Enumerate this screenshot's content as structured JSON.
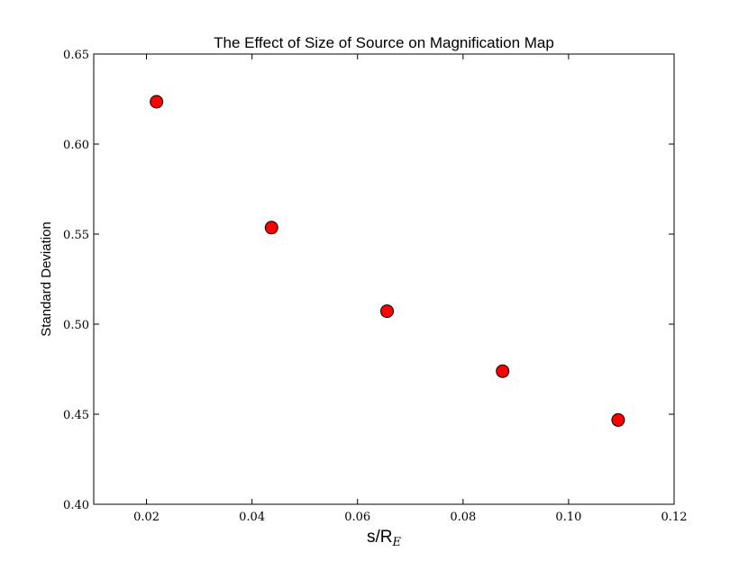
{
  "chart_data": {
    "type": "scatter",
    "title": "The Effect of Size of Source on Magnification Map",
    "xlabel": {
      "main": "s/R",
      "sub": "E"
    },
    "ylabel": "Standard Deviation",
    "xlim": [
      0.01,
      0.12
    ],
    "ylim": [
      0.4,
      0.65
    ],
    "xticks": [
      "0.02",
      "0.04",
      "0.06",
      "0.08",
      "0.10",
      "0.12"
    ],
    "yticks": [
      "0.40",
      "0.45",
      "0.50",
      "0.55",
      "0.60",
      "0.65"
    ],
    "grid": false,
    "marker_color": "#ff0000",
    "marker_edge_color": "#000000",
    "points": [
      {
        "x": 0.0219,
        "y": 0.6235
      },
      {
        "x": 0.0437,
        "y": 0.5536
      },
      {
        "x": 0.0656,
        "y": 0.5072
      },
      {
        "x": 0.0875,
        "y": 0.4739
      },
      {
        "x": 0.1094,
        "y": 0.4468
      }
    ]
  }
}
